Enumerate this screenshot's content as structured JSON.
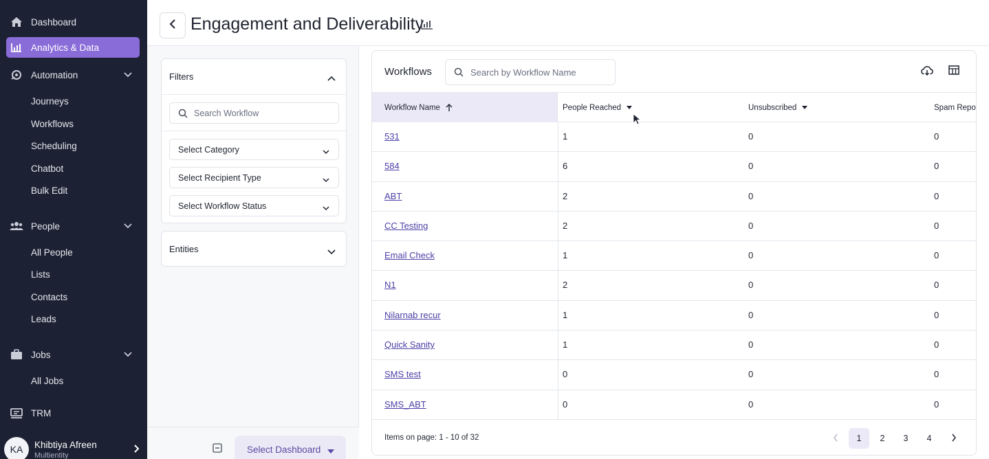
{
  "sidebar": {
    "items": [
      {
        "label": "Dashboard",
        "icon": "home-icon"
      },
      {
        "label": "Analytics & Data",
        "icon": "bar-chart-icon",
        "active": true
      },
      {
        "label": "Automation",
        "icon": "automation-icon"
      },
      {
        "label": "People",
        "icon": "people-icon"
      },
      {
        "label": "Jobs",
        "icon": "briefcase-icon"
      },
      {
        "label": "TRM",
        "icon": "trm-icon"
      }
    ],
    "automation_sub": [
      "Journeys",
      "Workflows",
      "Scheduling",
      "Chatbot",
      "Bulk Edit"
    ],
    "people_sub": [
      "All People",
      "Lists",
      "Contacts",
      "Leads"
    ],
    "jobs_sub": [
      "All Jobs"
    ],
    "user": {
      "initials": "KA",
      "name": "Khibtiya Afreen",
      "org": "Multientity"
    }
  },
  "header": {
    "title": "Engagement and Deliverability"
  },
  "filters": {
    "title": "Filters",
    "search_placeholder": "Search Workflow",
    "selects": [
      "Select Category",
      "Select Recipient Type",
      "Select Workflow Status"
    ],
    "entities": "Entities"
  },
  "dashboard_select": {
    "label": "Select Dashboard"
  },
  "table": {
    "title": "Workflows",
    "search_placeholder": "Search by Workflow Name",
    "columns": [
      "Workflow Name",
      "People Reached",
      "Unsubscribed",
      "Spam Repor"
    ],
    "rows": [
      [
        "531",
        "1",
        "0",
        "0"
      ],
      [
        "584",
        "6",
        "0",
        "0"
      ],
      [
        "ABT",
        "2",
        "0",
        "0"
      ],
      [
        "CC Testing",
        "2",
        "0",
        "0"
      ],
      [
        "Email Check",
        "1",
        "0",
        "0"
      ],
      [
        "N1",
        "2",
        "0",
        "0"
      ],
      [
        "Nilarnab recur",
        "1",
        "0",
        "0"
      ],
      [
        "Quick Sanity",
        "1",
        "0",
        "0"
      ],
      [
        "SMS test",
        "0",
        "0",
        "0"
      ],
      [
        "SMS_ABT",
        "0",
        "0",
        "0"
      ]
    ],
    "items_label": "Items on page: 1 - 10 of 32",
    "pages": [
      "1",
      "2",
      "3",
      "4"
    ],
    "current_page": "1"
  },
  "colors": {
    "sidebar_bg": "#1c2233",
    "accent": "#8a6cd8",
    "link": "#4b3fa6",
    "header_highlight": "#ebe9f7"
  }
}
